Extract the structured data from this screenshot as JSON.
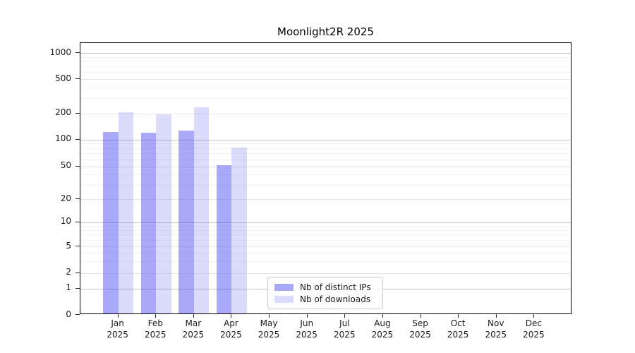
{
  "chart_data": {
    "type": "bar",
    "title": "Moonlight2R 2025",
    "categories": [
      {
        "month": "Jan",
        "year": "2025"
      },
      {
        "month": "Feb",
        "year": "2025"
      },
      {
        "month": "Mar",
        "year": "2025"
      },
      {
        "month": "Apr",
        "year": "2025"
      },
      {
        "month": "May",
        "year": "2025"
      },
      {
        "month": "Jun",
        "year": "2025"
      },
      {
        "month": "Jul",
        "year": "2025"
      },
      {
        "month": "Aug",
        "year": "2025"
      },
      {
        "month": "Sep",
        "year": "2025"
      },
      {
        "month": "Oct",
        "year": "2025"
      },
      {
        "month": "Nov",
        "year": "2025"
      },
      {
        "month": "Dec",
        "year": "2025"
      }
    ],
    "series": [
      {
        "name": "Nb of distinct IPs",
        "color": "rgba(64,64,240,0.45)",
        "values": [
          118,
          116,
          123,
          50,
          0,
          0,
          0,
          0,
          0,
          0,
          0,
          0
        ]
      },
      {
        "name": "Nb of downloads",
        "color": "rgba(64,64,240,0.19)",
        "values": [
          200,
          187,
          225,
          78,
          0,
          0,
          0,
          0,
          0,
          0,
          0,
          0
        ]
      }
    ],
    "xlabel": "",
    "ylabel": "",
    "yscale": "symlog",
    "ylim": [
      0,
      1000
    ],
    "yticks": [
      0,
      1,
      2,
      5,
      10,
      20,
      50,
      100,
      200,
      500,
      1000
    ],
    "grid": {
      "horizontal": true,
      "minor": true
    },
    "legend_position": "inside-lower-center"
  },
  "colors": {
    "grid_major": "#c6c6c6",
    "grid_mid": "#e7e7e7",
    "grid_minor": "#f2f2f2",
    "spine": "#000000",
    "text": "#1a1a1a",
    "legend_border": "#cccccc"
  }
}
